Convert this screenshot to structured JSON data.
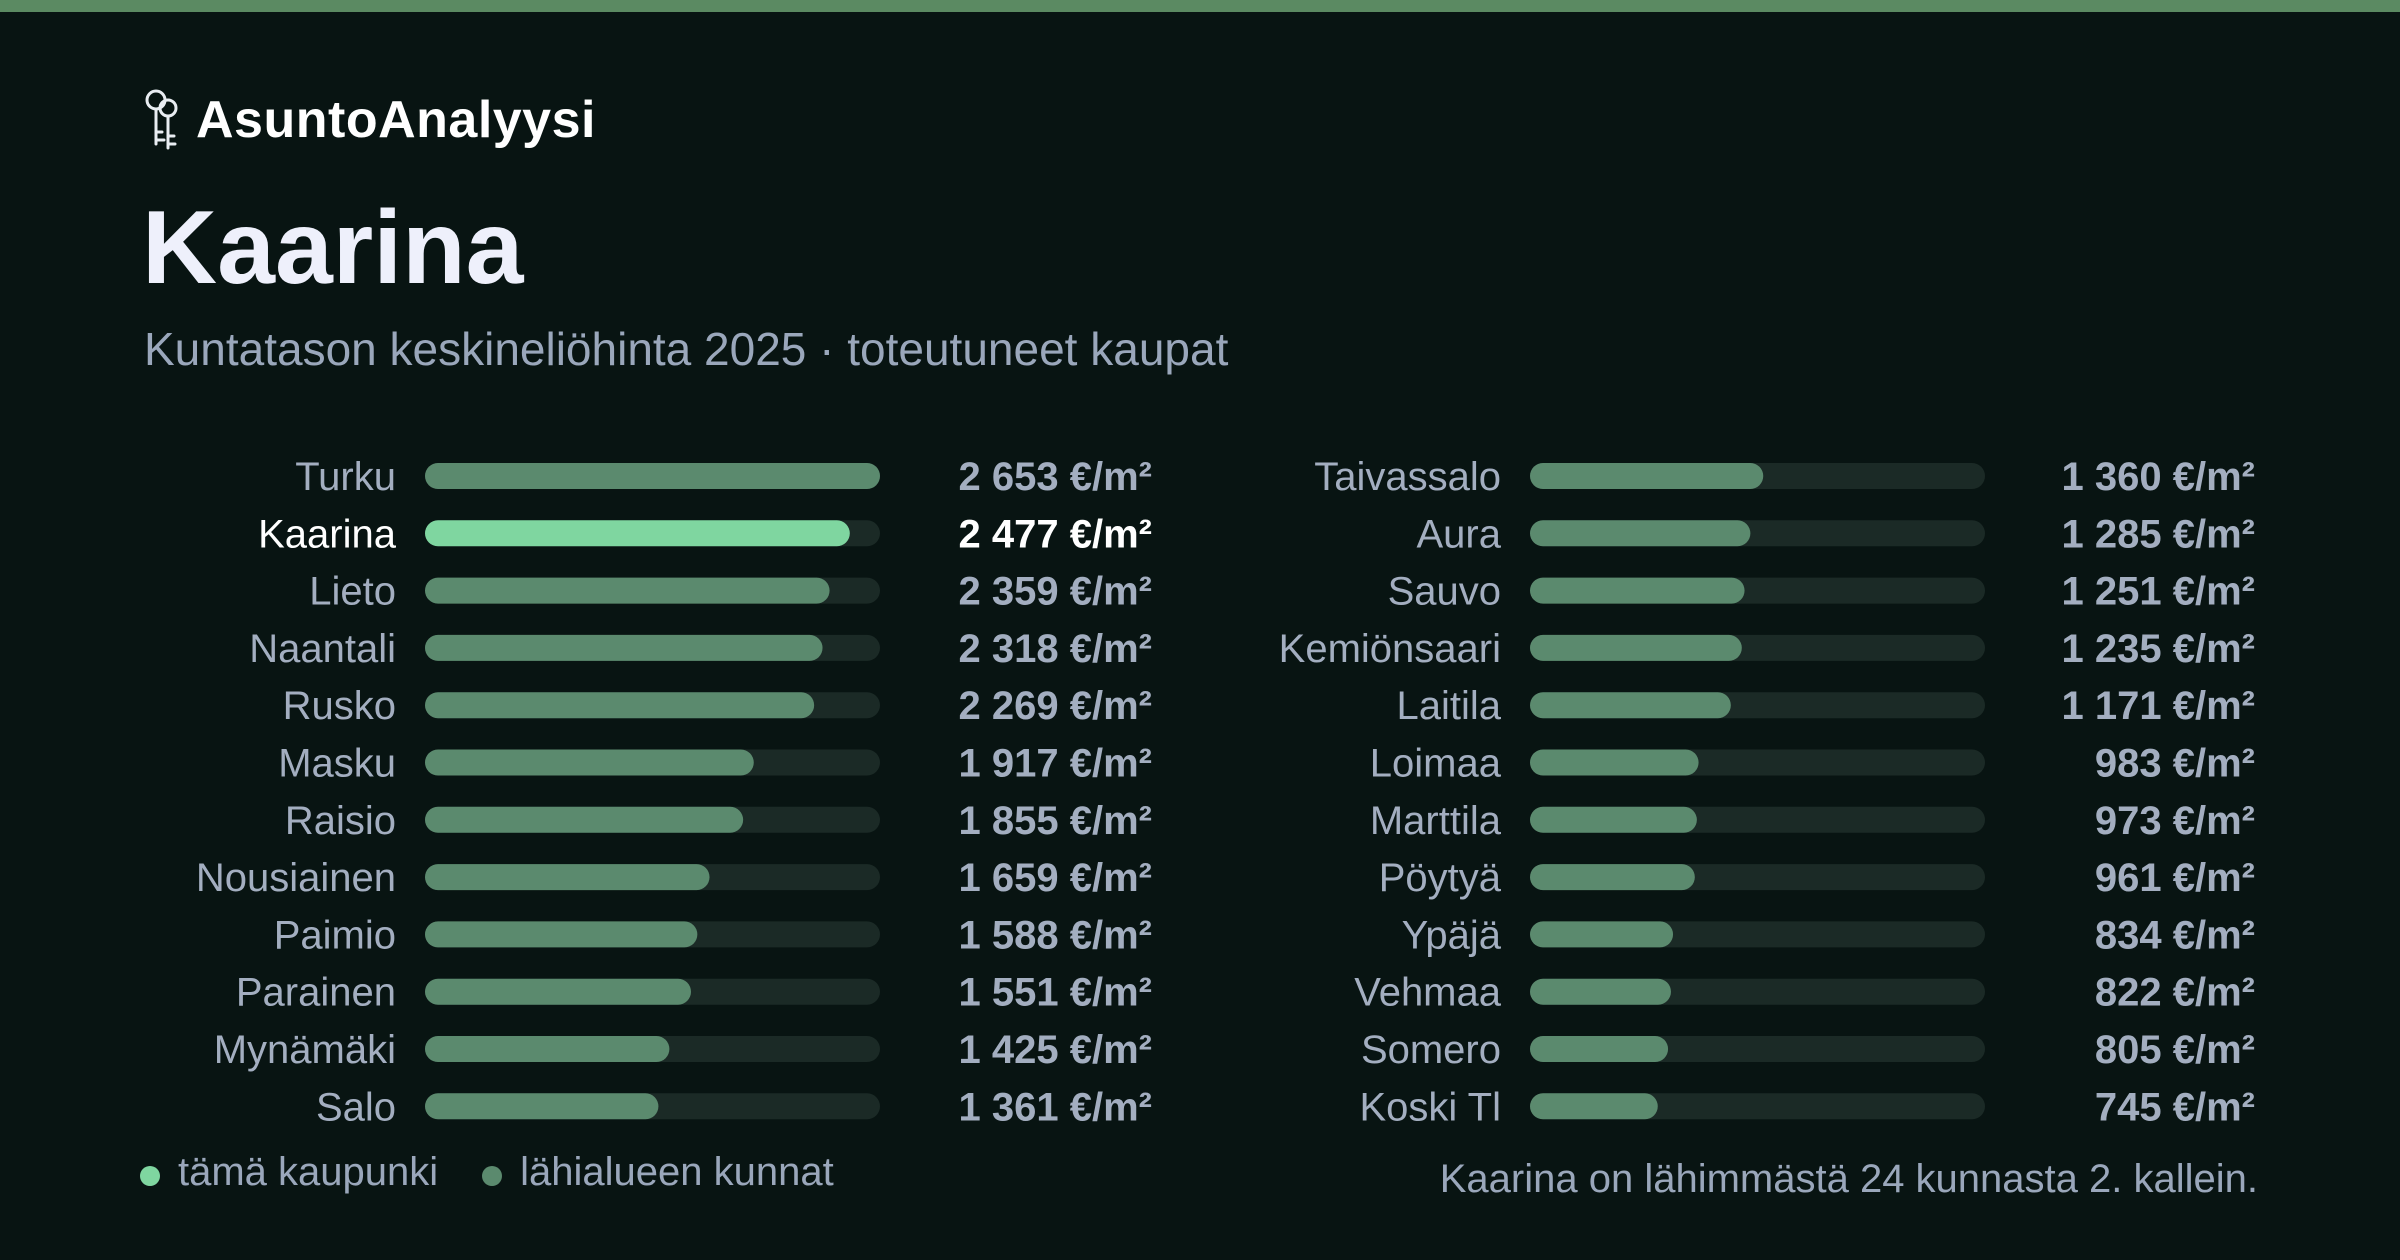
{
  "brand": {
    "name": "AsuntoAnalyysi",
    "icon": "keys-icon"
  },
  "header": {
    "title": "Kaarina",
    "subtitle": "Kuntatason keskineliöhinta 2025 · toteutuneet kaupat"
  },
  "colors": {
    "background": "#081412",
    "top_bar": "#5b8a62",
    "highlight_bar": "#7fd6a0",
    "other_bar": "#5b8a6e",
    "track": "#1b2a26",
    "label": "#a3aec0",
    "label_highlight": "#ffffff"
  },
  "chart_data": {
    "type": "bar",
    "orientation": "horizontal",
    "unit": "€/m²",
    "xlim": [
      0,
      2653
    ],
    "highlight": "Kaarina",
    "categories": [
      "Turku",
      "Kaarina",
      "Lieto",
      "Naantali",
      "Rusko",
      "Masku",
      "Raisio",
      "Nousiainen",
      "Paimio",
      "Parainen",
      "Mynämäki",
      "Salo",
      "Taivassalo",
      "Aura",
      "Sauvo",
      "Kemiönsaari",
      "Laitila",
      "Loimaa",
      "Marttila",
      "Pöytyä",
      "Ypäjä",
      "Vehmaa",
      "Somero",
      "Koski Tl"
    ],
    "values": [
      2653,
      2477,
      2359,
      2318,
      2269,
      1917,
      1855,
      1659,
      1588,
      1551,
      1425,
      1361,
      1360,
      1285,
      1251,
      1235,
      1171,
      983,
      973,
      961,
      834,
      822,
      805,
      745
    ],
    "value_labels": [
      "2 653 €/m²",
      "2 477 €/m²",
      "2 359 €/m²",
      "2 318 €/m²",
      "2 269 €/m²",
      "1 917 €/m²",
      "1 855 €/m²",
      "1 659 €/m²",
      "1 588 €/m²",
      "1 551 €/m²",
      "1 425 €/m²",
      "1 361 €/m²",
      "1 360 €/m²",
      "1 285 €/m²",
      "1 251 €/m²",
      "1 235 €/m²",
      "1 171 €/m²",
      "983 €/m²",
      "973 €/m²",
      "961 €/m²",
      "834 €/m²",
      "822 €/m²",
      "805 €/m²",
      "745 €/m²"
    ],
    "legend": [
      {
        "label": "tämä kaupunki",
        "color": "#7fd6a0"
      },
      {
        "label": "lähialueen kunnat",
        "color": "#5b8a6e"
      }
    ]
  },
  "footnote": "Kaarina on lähimmästä 24 kunnasta 2. kallein."
}
